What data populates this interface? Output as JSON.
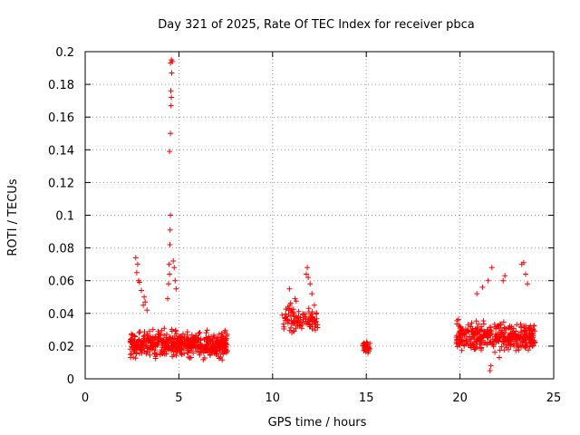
{
  "chart_data": {
    "type": "scatter",
    "title": "Day 321 of 2025, Rate Of TEC Index for receiver pbca",
    "xlabel": "GPS time / hours",
    "ylabel": "ROTI / TECUs",
    "xlim": [
      0,
      25
    ],
    "ylim": [
      0,
      0.2
    ],
    "xticks": [
      0,
      5,
      10,
      15,
      20,
      25
    ],
    "yticks": [
      0,
      0.02,
      0.04,
      0.06,
      0.08,
      0.1,
      0.12,
      0.14,
      0.16,
      0.18,
      0.2
    ],
    "grid": true,
    "marker": "+",
    "color": "#ff0000",
    "clusters": [
      {
        "x": [
          2.4,
          7.6
        ],
        "y_mean": 0.021,
        "y_spread": 0.008,
        "count": 560
      },
      {
        "x": [
          10.5,
          12.4
        ],
        "y_mean": 0.037,
        "y_spread": 0.009,
        "count": 110
      },
      {
        "x": [
          14.8,
          15.2
        ],
        "y_mean": 0.019,
        "y_spread": 0.003,
        "count": 30
      },
      {
        "x": [
          19.8,
          24.0
        ],
        "y_mean": 0.026,
        "y_spread": 0.009,
        "count": 380
      }
    ],
    "points": [
      [
        2.7,
        0.074
      ],
      [
        2.8,
        0.07
      ],
      [
        2.75,
        0.065
      ],
      [
        2.85,
        0.06
      ],
      [
        2.9,
        0.059
      ],
      [
        3.0,
        0.054
      ],
      [
        3.1,
        0.045
      ],
      [
        3.2,
        0.047
      ],
      [
        3.3,
        0.042
      ],
      [
        3.15,
        0.05
      ],
      [
        4.4,
        0.049
      ],
      [
        4.45,
        0.058
      ],
      [
        4.5,
        0.064
      ],
      [
        4.48,
        0.07
      ],
      [
        4.52,
        0.082
      ],
      [
        4.53,
        0.091
      ],
      [
        4.55,
        0.1
      ],
      [
        4.5,
        0.139
      ],
      [
        4.55,
        0.15
      ],
      [
        4.58,
        0.167
      ],
      [
        4.6,
        0.172
      ],
      [
        4.57,
        0.176
      ],
      [
        4.62,
        0.187
      ],
      [
        4.55,
        0.193
      ],
      [
        4.6,
        0.195
      ],
      [
        4.65,
        0.194
      ],
      [
        4.7,
        0.072
      ],
      [
        4.75,
        0.068
      ],
      [
        4.8,
        0.06
      ],
      [
        4.85,
        0.055
      ],
      [
        10.9,
        0.055
      ],
      [
        11.2,
        0.049
      ],
      [
        11.8,
        0.064
      ],
      [
        11.85,
        0.068
      ],
      [
        11.9,
        0.062
      ],
      [
        12.0,
        0.058
      ],
      [
        12.1,
        0.052
      ],
      [
        21.2,
        0.056
      ],
      [
        21.5,
        0.06
      ],
      [
        21.7,
        0.068
      ],
      [
        22.4,
        0.063
      ],
      [
        22.3,
        0.06
      ],
      [
        23.3,
        0.07
      ],
      [
        23.4,
        0.071
      ],
      [
        23.5,
        0.064
      ],
      [
        23.6,
        0.058
      ],
      [
        20.9,
        0.052
      ],
      [
        21.6,
        0.005
      ],
      [
        21.65,
        0.008
      ],
      [
        22.1,
        0.013
      ]
    ]
  }
}
